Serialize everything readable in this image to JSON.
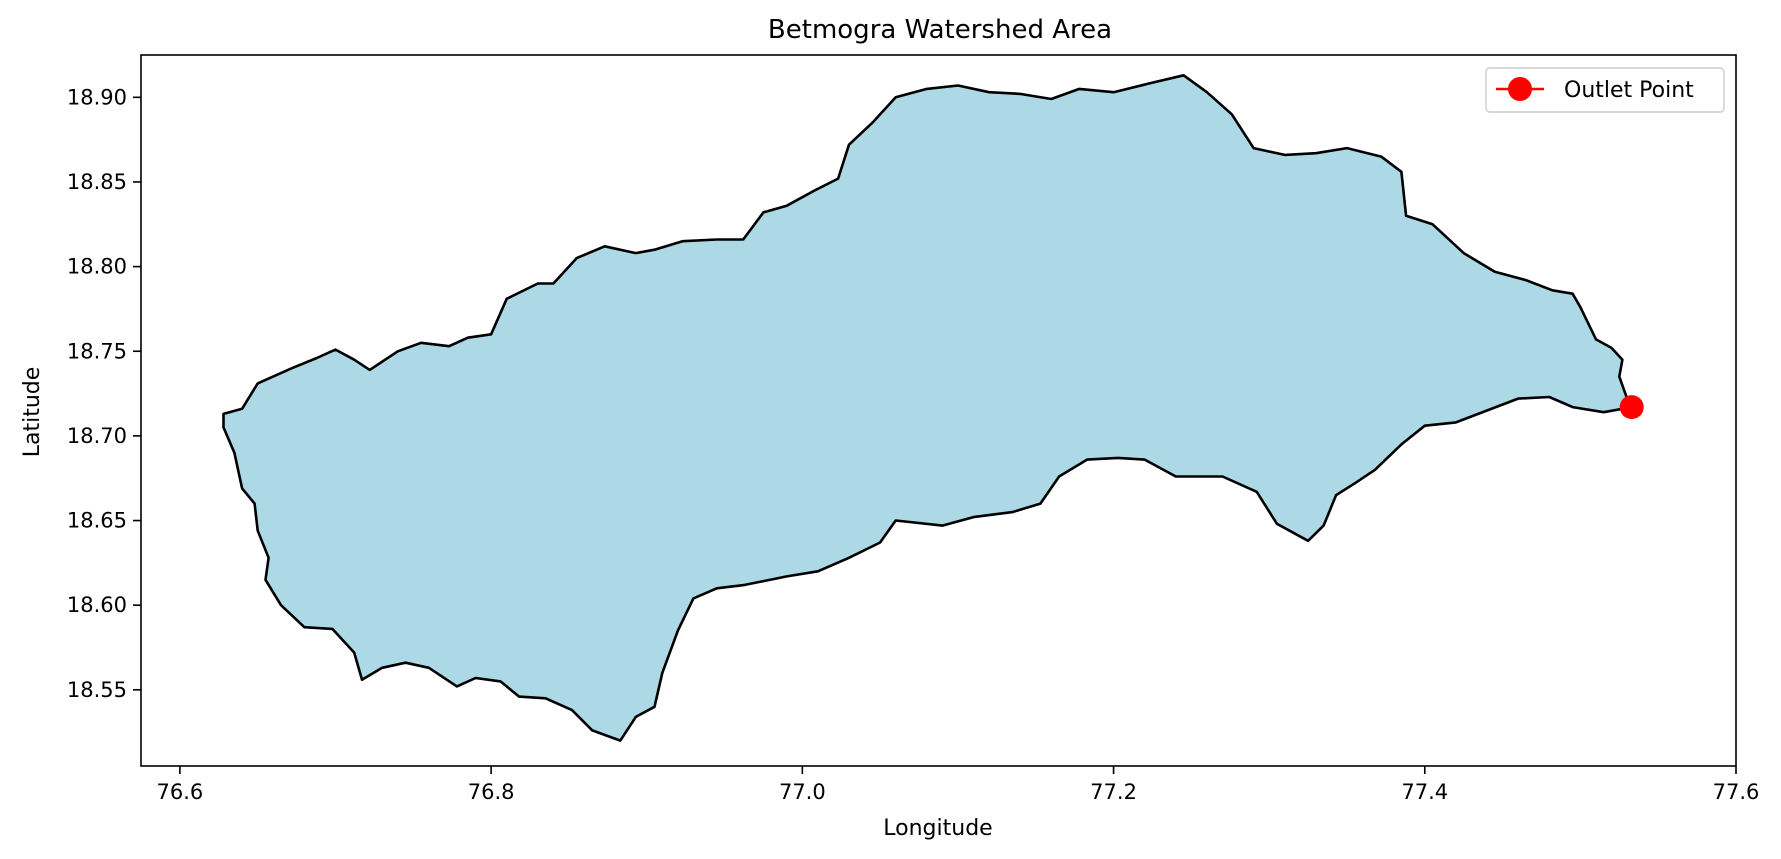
{
  "title": "Betmogra Watershed Area",
  "xlabel": "Longitude",
  "ylabel": "Latitude",
  "legend": {
    "label": "Outlet Point",
    "placement": "top-right"
  },
  "colors": {
    "fill": "#add8e6",
    "boundary": "#000000",
    "outlet": "#ff0000"
  },
  "chart_data": {
    "type": "map",
    "title": "Betmogra Watershed Area",
    "xlabel": "Longitude",
    "ylabel": "Latitude",
    "xlim": [
      76.575,
      77.6
    ],
    "ylim": [
      18.505,
      18.925
    ],
    "xticks": [
      "76.6",
      "76.8",
      "77.0",
      "77.2",
      "77.4",
      "77.6"
    ],
    "yticks": [
      "18.55",
      "18.60",
      "18.65",
      "18.70",
      "18.75",
      "18.80",
      "18.85",
      "18.90"
    ],
    "grid": false,
    "outlet_point": {
      "name": "Outlet Point",
      "lon": 77.533,
      "lat": 18.717
    },
    "watershed_boundary": [
      [
        76.628,
        18.713
      ],
      [
        76.64,
        18.716
      ],
      [
        76.65,
        18.731
      ],
      [
        76.672,
        18.74
      ],
      [
        76.688,
        18.746
      ],
      [
        76.7,
        18.751
      ],
      [
        76.712,
        18.745
      ],
      [
        76.722,
        18.739
      ],
      [
        76.74,
        18.75
      ],
      [
        76.755,
        18.755
      ],
      [
        76.773,
        18.753
      ],
      [
        76.785,
        18.758
      ],
      [
        76.8,
        18.76
      ],
      [
        76.81,
        18.781
      ],
      [
        76.83,
        18.79
      ],
      [
        76.84,
        18.79
      ],
      [
        76.855,
        18.805
      ],
      [
        76.873,
        18.812
      ],
      [
        76.893,
        18.808
      ],
      [
        76.905,
        18.81
      ],
      [
        76.923,
        18.815
      ],
      [
        76.945,
        18.816
      ],
      [
        76.962,
        18.816
      ],
      [
        76.975,
        18.832
      ],
      [
        76.99,
        18.836
      ],
      [
        77.008,
        18.845
      ],
      [
        77.023,
        18.852
      ],
      [
        77.03,
        18.872
      ],
      [
        77.045,
        18.885
      ],
      [
        77.06,
        18.9
      ],
      [
        77.08,
        18.905
      ],
      [
        77.1,
        18.907
      ],
      [
        77.12,
        18.903
      ],
      [
        77.14,
        18.902
      ],
      [
        77.16,
        18.899
      ],
      [
        77.178,
        18.905
      ],
      [
        77.2,
        18.903
      ],
      [
        77.222,
        18.908
      ],
      [
        77.245,
        18.913
      ],
      [
        77.26,
        18.903
      ],
      [
        77.276,
        18.89
      ],
      [
        77.29,
        18.87
      ],
      [
        77.31,
        18.866
      ],
      [
        77.33,
        18.867
      ],
      [
        77.35,
        18.87
      ],
      [
        77.372,
        18.865
      ],
      [
        77.385,
        18.856
      ],
      [
        77.388,
        18.83
      ],
      [
        77.405,
        18.825
      ],
      [
        77.425,
        18.808
      ],
      [
        77.445,
        18.797
      ],
      [
        77.465,
        18.792
      ],
      [
        77.482,
        18.786
      ],
      [
        77.495,
        18.784
      ],
      [
        77.5,
        18.776
      ],
      [
        77.51,
        18.757
      ],
      [
        77.52,
        18.752
      ],
      [
        77.527,
        18.745
      ],
      [
        77.525,
        18.735
      ],
      [
        77.53,
        18.722
      ],
      [
        77.533,
        18.717
      ],
      [
        77.515,
        18.714
      ],
      [
        77.495,
        18.717
      ],
      [
        77.48,
        18.723
      ],
      [
        77.46,
        18.722
      ],
      [
        77.44,
        18.715
      ],
      [
        77.42,
        18.708
      ],
      [
        77.4,
        18.706
      ],
      [
        77.385,
        18.695
      ],
      [
        77.368,
        18.68
      ],
      [
        77.355,
        18.672
      ],
      [
        77.343,
        18.665
      ],
      [
        77.335,
        18.647
      ],
      [
        77.325,
        18.638
      ],
      [
        77.305,
        18.648
      ],
      [
        77.292,
        18.667
      ],
      [
        77.27,
        18.676
      ],
      [
        77.24,
        18.676
      ],
      [
        77.22,
        18.686
      ],
      [
        77.203,
        18.687
      ],
      [
        77.183,
        18.686
      ],
      [
        77.165,
        18.676
      ],
      [
        77.153,
        18.66
      ],
      [
        77.135,
        18.655
      ],
      [
        77.11,
        18.652
      ],
      [
        77.09,
        18.647
      ],
      [
        77.06,
        18.65
      ],
      [
        77.05,
        18.637
      ],
      [
        77.03,
        18.628
      ],
      [
        77.01,
        18.62
      ],
      [
        76.99,
        18.617
      ],
      [
        76.963,
        18.612
      ],
      [
        76.945,
        18.61
      ],
      [
        76.93,
        18.604
      ],
      [
        76.92,
        18.585
      ],
      [
        76.91,
        18.56
      ],
      [
        76.905,
        18.54
      ],
      [
        76.893,
        18.534
      ],
      [
        76.883,
        18.52
      ],
      [
        76.865,
        18.526
      ],
      [
        76.852,
        18.538
      ],
      [
        76.835,
        18.545
      ],
      [
        76.818,
        18.546
      ],
      [
        76.806,
        18.555
      ],
      [
        76.79,
        18.557
      ],
      [
        76.778,
        18.552
      ],
      [
        76.76,
        18.563
      ],
      [
        76.745,
        18.566
      ],
      [
        76.73,
        18.563
      ],
      [
        76.717,
        18.556
      ],
      [
        76.712,
        18.572
      ],
      [
        76.698,
        18.586
      ],
      [
        76.68,
        18.587
      ],
      [
        76.665,
        18.6
      ],
      [
        76.655,
        18.615
      ],
      [
        76.657,
        18.628
      ],
      [
        76.65,
        18.644
      ],
      [
        76.648,
        18.66
      ],
      [
        76.64,
        18.669
      ],
      [
        76.635,
        18.69
      ],
      [
        76.628,
        18.705
      ],
      [
        76.628,
        18.713
      ]
    ]
  }
}
